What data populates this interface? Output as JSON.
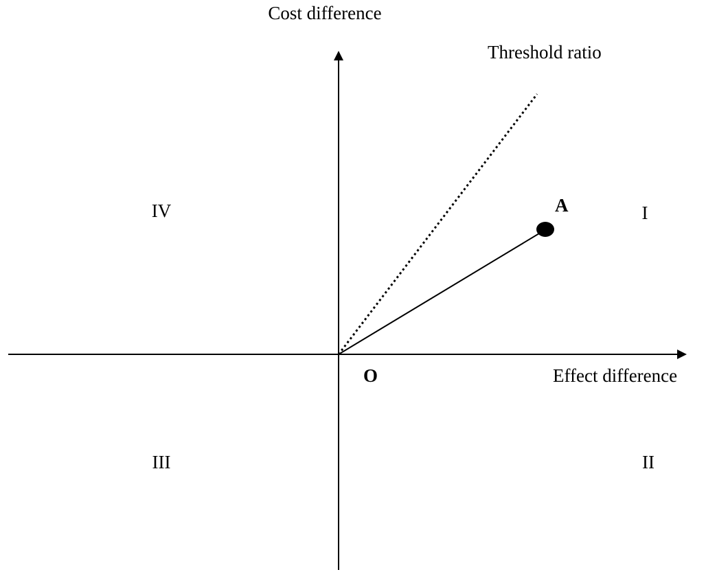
{
  "axes": {
    "y_label": "Cost difference",
    "x_label": "Effect difference"
  },
  "threshold_label": "Threshold ratio",
  "origin_label": "O",
  "point_label": "A",
  "quadrants": [
    "I",
    "II",
    "III",
    "IV"
  ]
}
